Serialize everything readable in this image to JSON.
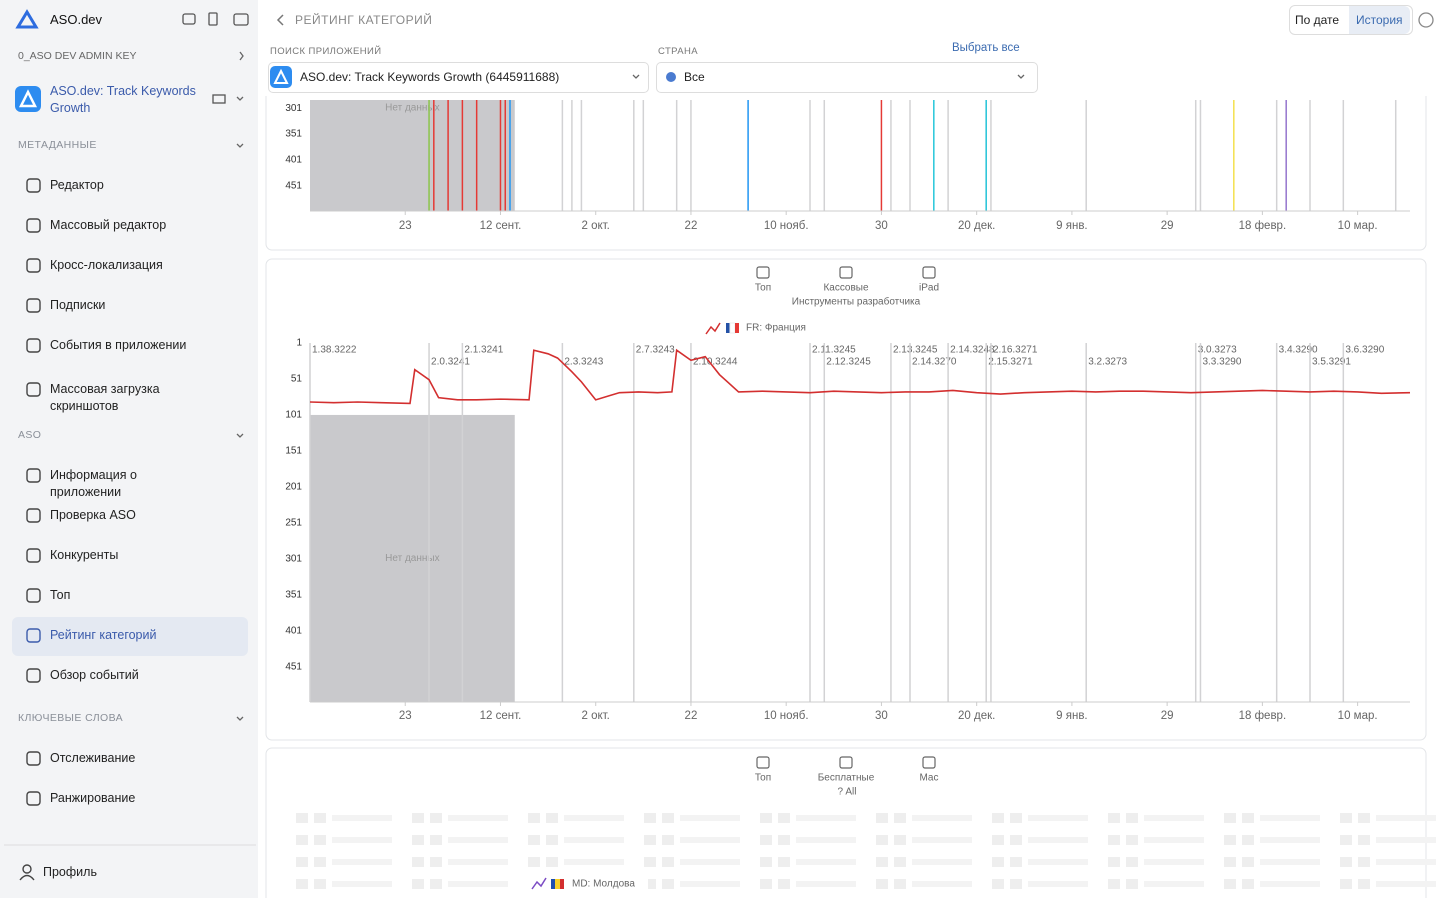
{
  "sidebar": {
    "brand": "ASO.dev",
    "key": "0_ASO DEV ADMIN KEY",
    "app": "ASO.dev: Track Keywords Growth",
    "sections": [
      {
        "title": "МЕТАДАННЫЕ",
        "items": [
          "Редактор",
          "Массовый редактор",
          "Кросс-локализация",
          "Подписки",
          "События в приложении",
          "Массовая загрузка скриншотов"
        ]
      },
      {
        "title": "ASO",
        "items": [
          "Информация о приложении",
          "Проверка ASO",
          "Конкуренты",
          "Топ",
          "Рейтинг категорий",
          "Обзор событий"
        ]
      },
      {
        "title": "КЛЮЧЕВЫЕ СЛОВА",
        "items": [
          "Отслеживание",
          "Ранжирование"
        ]
      }
    ],
    "profile": "Профиль"
  },
  "header": {
    "title": "РЕЙТИНГ КАТЕГОРИЙ",
    "tabs": [
      "По дате",
      "История"
    ]
  },
  "filters": {
    "app_label": "ПОИСК ПРИЛОЖЕНИЙ",
    "app_value": "ASO.dev: Track Keywords Growth (6445911688)",
    "country_label": "СТРАНА",
    "select_all": "Выбрать все",
    "country_value": "Все"
  },
  "chart_data": [
    {
      "type": "line",
      "y_inverted": true,
      "xlim": [
        0,
        231
      ],
      "ylim": [
        285,
        500
      ],
      "yticks": [
        301,
        351,
        401,
        451
      ],
      "xticks": [
        {
          "value": 20,
          "label": "23"
        },
        {
          "value": 40,
          "label": "12 сент."
        },
        {
          "value": 60,
          "label": "2 окт."
        },
        {
          "value": 80,
          "label": "22"
        },
        {
          "value": 100,
          "label": "10 нояб."
        },
        {
          "value": 120,
          "label": "30"
        },
        {
          "value": 140,
          "label": "20 дек."
        },
        {
          "value": 160,
          "label": "9 янв."
        },
        {
          "value": 180,
          "label": "29"
        },
        {
          "value": 200,
          "label": "18 февр."
        },
        {
          "value": 220,
          "label": "10 мар."
        }
      ],
      "no_data": {
        "label": "Нет данных",
        "x": [
          0,
          43
        ]
      },
      "versions_x": [
        25,
        32,
        53,
        55,
        57,
        68,
        70,
        77,
        80,
        105,
        108,
        122,
        126,
        134,
        142,
        143,
        163,
        186,
        187,
        203,
        210,
        217,
        228
      ],
      "events": [
        {
          "x": 25,
          "color": "#8bc34a"
        },
        {
          "x": 26,
          "color": "#e53935"
        },
        {
          "x": 29,
          "color": "#e53935"
        },
        {
          "x": 32,
          "color": "#e53935"
        },
        {
          "x": 35,
          "color": "#e53935"
        },
        {
          "x": 40,
          "color": "#e53935"
        },
        {
          "x": 41,
          "color": "#e53935"
        },
        {
          "x": 42,
          "color": "#2196f3"
        },
        {
          "x": 92,
          "color": "#2196f3"
        },
        {
          "x": 120,
          "color": "#e53935"
        },
        {
          "x": 131,
          "color": "#26c6da"
        },
        {
          "x": 142,
          "color": "#26c6da"
        },
        {
          "x": 194,
          "color": "#f4e04d"
        },
        {
          "x": 205,
          "color": "#9575cd"
        }
      ]
    },
    {
      "type": "line",
      "y_inverted": true,
      "filters": [
        "Топ",
        "Кассовые",
        "iPad"
      ],
      "category": "Инструменты разработчика",
      "xlim": [
        0,
        231
      ],
      "ylim": [
        1,
        500
      ],
      "yticks": [
        1,
        51,
        101,
        151,
        201,
        251,
        301,
        351,
        401,
        451
      ],
      "xticks": [
        {
          "value": 20,
          "label": "23"
        },
        {
          "value": 40,
          "label": "12 сент."
        },
        {
          "value": 60,
          "label": "2 окт."
        },
        {
          "value": 80,
          "label": "22"
        },
        {
          "value": 100,
          "label": "10 нояб."
        },
        {
          "value": 120,
          "label": "30"
        },
        {
          "value": 140,
          "label": "20 дек."
        },
        {
          "value": 160,
          "label": "9 янв."
        },
        {
          "value": 180,
          "label": "29"
        },
        {
          "value": 200,
          "label": "18 февр."
        },
        {
          "value": 220,
          "label": "10 мар."
        }
      ],
      "no_data": {
        "label": "Нет данных",
        "x": [
          0,
          43
        ],
        "y": [
          101,
          500
        ]
      },
      "versions": [
        {
          "label": "1.38.3222",
          "x": 0
        },
        {
          "label": "2.0.3241",
          "x": 25
        },
        {
          "label": "2.1.3241",
          "x": 32
        },
        {
          "label": "2.3.3243",
          "x": 53
        },
        {
          "label": "2.7.3243",
          "x": 68
        },
        {
          "label": "2.10.3244",
          "x": 80
        },
        {
          "label": "2.11.3245",
          "x": 105
        },
        {
          "label": "2.12.3245",
          "x": 108
        },
        {
          "label": "2.13.3245",
          "x": 122
        },
        {
          "label": "2.14.3270",
          "x": 126
        },
        {
          "label": "2.14.3248",
          "x": 134
        },
        {
          "label": "2.15.3271",
          "x": 142
        },
        {
          "label": "2.16.3271",
          "x": 143
        },
        {
          "label": "3.2.3273",
          "x": 163
        },
        {
          "label": "3.0.3273",
          "x": 186
        },
        {
          "label": "3.3.3290",
          "x": 187
        },
        {
          "label": "3.4.3290",
          "x": 203
        },
        {
          "label": "3.5.3291",
          "x": 210
        },
        {
          "label": "3.6.3290",
          "x": 217
        }
      ],
      "x": [
        0,
        5,
        10,
        15,
        21,
        22,
        25,
        27,
        31,
        35,
        40,
        46,
        47,
        50,
        52,
        55,
        57,
        60,
        63,
        65,
        69,
        73,
        76,
        77,
        80,
        83,
        86,
        90,
        95,
        100,
        105,
        110,
        115,
        120,
        125,
        130,
        135,
        140,
        145,
        150,
        155,
        160,
        165,
        170,
        175,
        180,
        185,
        190,
        195,
        200,
        205,
        210,
        215,
        220,
        225,
        231
      ],
      "series": [
        {
          "name": "FR: Франция",
          "color": "#d32f2f",
          "values": [
            83,
            84,
            83,
            84,
            85,
            38,
            52,
            77,
            80,
            80,
            79,
            80,
            11,
            16,
            22,
            41,
            55,
            80,
            74,
            70,
            69,
            70,
            69,
            11,
            25,
            20,
            45,
            69,
            68,
            69,
            70,
            68,
            69,
            70,
            69,
            69,
            67,
            70,
            72,
            70,
            69,
            68,
            69,
            68,
            68,
            69,
            70,
            69,
            68,
            67,
            68,
            69,
            68,
            69,
            71,
            70
          ]
        }
      ]
    }
  ],
  "panel3": {
    "filters": [
      "Топ",
      "Бесплатные",
      "Mac"
    ],
    "category": "? All",
    "legend": "MD: Молдова"
  }
}
